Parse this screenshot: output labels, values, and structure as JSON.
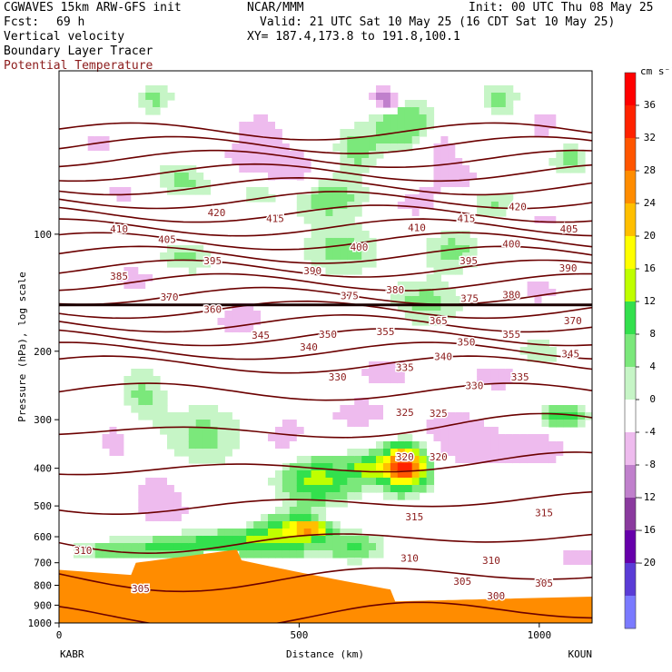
{
  "header": {
    "model": "CGWAVES 15km ARW-GFS init",
    "org": "NCAR/MMM",
    "init": "Init: 00 UTC Thu 08 May 25",
    "fcst_label": "Fcst:",
    "fcst_value": "69 h",
    "valid": "Valid: 21 UTC Sat 10 May 25 (16 CDT Sat 10 May 25)",
    "xy": "XY= 187.4,173.8 to 191.8,100.1",
    "field1": "Vertical velocity",
    "field2": "Boundary Layer Tracer",
    "field3": "Potential Temperature"
  },
  "colors": {
    "theta_contour": "#6b0000",
    "tropopause_line": "#1a0000",
    "ground": "#ff8c00",
    "label_color": "#8b1a1a"
  },
  "chart_data": {
    "type": "cross-section",
    "ylabel": "Pressure (hPa), log scale",
    "xlabel": "Distance (km)",
    "x_ticks": [
      "0",
      "500",
      "1000"
    ],
    "x_tick_values": [
      0,
      500,
      1000
    ],
    "xlim": [
      0,
      1110
    ],
    "y_ticks": [
      "100",
      "200",
      "300",
      "400",
      "500",
      "600",
      "700",
      "800",
      "900",
      "1000"
    ],
    "y_tick_values": [
      100,
      200,
      300,
      400,
      500,
      600,
      700,
      800,
      900,
      1000
    ],
    "ylim": [
      1000,
      38
    ],
    "yscale": "log",
    "endpoints": {
      "left": "KABR",
      "right": "KOUN"
    },
    "colorbar": {
      "units": "cm s⁻¹",
      "labels": [
        "36",
        "32",
        "28",
        "24",
        "20",
        "16",
        "12",
        "8",
        "4",
        "0",
        "-4",
        "-8",
        "-12",
        "-16",
        "-20"
      ],
      "label_values": [
        36,
        32,
        28,
        24,
        20,
        16,
        12,
        8,
        4,
        0,
        -4,
        -8,
        -12,
        -16,
        -20
      ],
      "bins": [
        {
          "v": 38,
          "color": "#ff0000"
        },
        {
          "v": 34,
          "color": "#ff2200"
        },
        {
          "v": 30,
          "color": "#ff5500"
        },
        {
          "v": 26,
          "color": "#ff8c00"
        },
        {
          "v": 22,
          "color": "#ffbf00"
        },
        {
          "v": 18,
          "color": "#ffff00"
        },
        {
          "v": 14,
          "color": "#bfff00"
        },
        {
          "v": 10,
          "color": "#33e04d"
        },
        {
          "v": 6,
          "color": "#7be87b"
        },
        {
          "v": 2,
          "color": "#c6f5c6"
        },
        {
          "v": -2,
          "color": "#ffffff"
        },
        {
          "v": -6,
          "color": "#eebbee"
        },
        {
          "v": -10,
          "color": "#c080cc"
        },
        {
          "v": -14,
          "color": "#8a3a9e"
        },
        {
          "v": -18,
          "color": "#6600aa"
        },
        {
          "v": -22,
          "color": "#5a3cd6"
        },
        {
          "v": -26,
          "color": "#7a7aff"
        }
      ]
    },
    "theta_labels": [
      {
        "text": "420",
        "x": 328,
        "p": 88
      },
      {
        "text": "415",
        "x": 450,
        "p": 91
      },
      {
        "text": "420",
        "x": 955,
        "p": 85
      },
      {
        "text": "415",
        "x": 848,
        "p": 91
      },
      {
        "text": "410",
        "x": 125,
        "p": 97
      },
      {
        "text": "405",
        "x": 225,
        "p": 103
      },
      {
        "text": "410",
        "x": 745,
        "p": 96
      },
      {
        "text": "405",
        "x": 1062,
        "p": 97
      },
      {
        "text": "400",
        "x": 625,
        "p": 108
      },
      {
        "text": "400",
        "x": 942,
        "p": 106
      },
      {
        "text": "395",
        "x": 320,
        "p": 117
      },
      {
        "text": "395",
        "x": 853,
        "p": 117
      },
      {
        "text": "390",
        "x": 528,
        "p": 124
      },
      {
        "text": "390",
        "x": 1060,
        "p": 122
      },
      {
        "text": "385",
        "x": 125,
        "p": 128
      },
      {
        "text": "380",
        "x": 700,
        "p": 139
      },
      {
        "text": "380",
        "x": 942,
        "p": 143
      },
      {
        "text": "375",
        "x": 605,
        "p": 144
      },
      {
        "text": "375",
        "x": 855,
        "p": 146
      },
      {
        "text": "370",
        "x": 230,
        "p": 145
      },
      {
        "text": "370",
        "x": 1070,
        "p": 167
      },
      {
        "text": "360",
        "x": 320,
        "p": 156
      },
      {
        "text": "365",
        "x": 790,
        "p": 167
      },
      {
        "text": "355",
        "x": 680,
        "p": 178
      },
      {
        "text": "355",
        "x": 942,
        "p": 181
      },
      {
        "text": "350",
        "x": 560,
        "p": 181
      },
      {
        "text": "350",
        "x": 848,
        "p": 189
      },
      {
        "text": "345",
        "x": 420,
        "p": 182
      },
      {
        "text": "345",
        "x": 1065,
        "p": 203
      },
      {
        "text": "340",
        "x": 520,
        "p": 195
      },
      {
        "text": "340",
        "x": 800,
        "p": 206
      },
      {
        "text": "335",
        "x": 720,
        "p": 220
      },
      {
        "text": "335",
        "x": 960,
        "p": 233
      },
      {
        "text": "330",
        "x": 580,
        "p": 233
      },
      {
        "text": "330",
        "x": 865,
        "p": 245
      },
      {
        "text": "325",
        "x": 720,
        "p": 287
      },
      {
        "text": "325",
        "x": 790,
        "p": 289
      },
      {
        "text": "320",
        "x": 720,
        "p": 374
      },
      {
        "text": "320",
        "x": 790,
        "p": 374
      },
      {
        "text": "315",
        "x": 740,
        "p": 533
      },
      {
        "text": "315",
        "x": 1010,
        "p": 520
      },
      {
        "text": "310",
        "x": 50,
        "p": 650
      },
      {
        "text": "310",
        "x": 730,
        "p": 680
      },
      {
        "text": "310",
        "x": 900,
        "p": 690
      },
      {
        "text": "305",
        "x": 170,
        "p": 815
      },
      {
        "text": "305",
        "x": 840,
        "p": 780
      },
      {
        "text": "305",
        "x": 1010,
        "p": 790
      },
      {
        "text": "300",
        "x": 910,
        "p": 850
      }
    ]
  }
}
